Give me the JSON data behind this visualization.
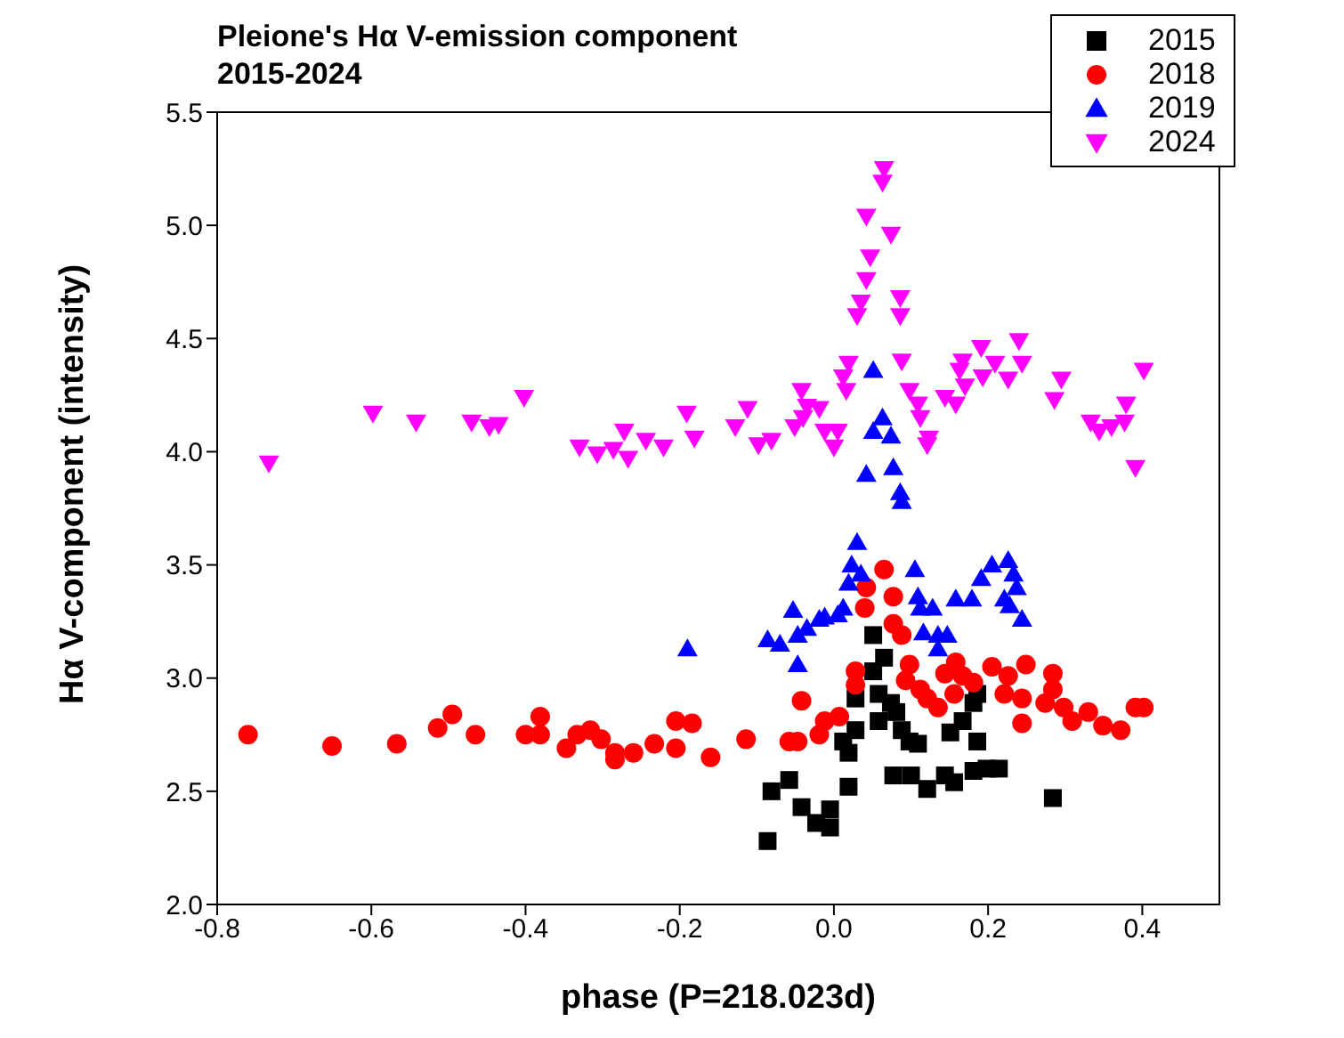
{
  "chart_data": {
    "type": "scatter",
    "title": "Pleione's Hα V-emission component",
    "subtitle": "2015-2024",
    "xlabel": "phase (P=218.023d)",
    "ylabel": "Hα V-component (intensity)",
    "xlim": [
      -0.8,
      0.5
    ],
    "xticks": [
      {
        "value": -0.8,
        "label": "-0.8"
      },
      {
        "value": -0.6,
        "label": "-0.6"
      },
      {
        "value": -0.4,
        "label": "-0.4"
      },
      {
        "value": -0.2,
        "label": "-0.2"
      },
      {
        "value": 0,
        "label": "0.0"
      },
      {
        "value": 0.2,
        "label": "0.2"
      },
      {
        "value": 0.4,
        "label": "0.4"
      }
    ],
    "ylim": [
      2,
      5.5
    ],
    "yticks": [
      {
        "value": 2,
        "label": "2.0"
      },
      {
        "value": 2.5,
        "label": "2.5"
      },
      {
        "value": 3,
        "label": "3.0"
      },
      {
        "value": 3.5,
        "label": "3.5"
      },
      {
        "value": 4,
        "label": "4.0"
      },
      {
        "value": 4.5,
        "label": "4.5"
      },
      {
        "value": 5,
        "label": "5.0"
      },
      {
        "value": 5.5,
        "label": "5.5"
      }
    ],
    "grid": false,
    "legend": "top right",
    "series": [
      {
        "name": "2015",
        "color": "#000000",
        "marker": "square",
        "x": [
          -0.086,
          -0.081,
          -0.058,
          -0.042,
          -0.023,
          -0.005,
          -0.005,
          0.019,
          0.019,
          0.012,
          0.028,
          0.028,
          0.051,
          0.051,
          0.065,
          0.058,
          0.058,
          0.074,
          0.081,
          0.088,
          0.098,
          0.109,
          0.077,
          0.1,
          0.121,
          0.144,
          0.156,
          0.151,
          0.167,
          0.181,
          0.186,
          0.186,
          0.181,
          0.198,
          0.214,
          0.284
        ],
        "values": [
          2.28,
          2.5,
          2.55,
          2.43,
          2.36,
          2.34,
          2.42,
          2.52,
          2.67,
          2.72,
          2.77,
          2.91,
          3.19,
          3.03,
          3.09,
          2.93,
          2.81,
          2.89,
          2.85,
          2.77,
          2.72,
          2.71,
          2.57,
          2.57,
          2.51,
          2.57,
          2.54,
          2.76,
          2.81,
          2.89,
          2.93,
          2.72,
          2.59,
          2.6,
          2.6,
          2.47
        ]
      },
      {
        "name": "2018",
        "color": "#ff0000",
        "marker": "circle",
        "x": [
          -0.76,
          -0.651,
          -0.567,
          -0.514,
          -0.495,
          -0.465,
          -0.4,
          -0.381,
          -0.381,
          -0.347,
          -0.333,
          -0.316,
          -0.302,
          -0.284,
          -0.284,
          -0.26,
          -0.233,
          -0.205,
          -0.184,
          -0.205,
          -0.16,
          -0.114,
          -0.058,
          -0.047,
          -0.019,
          -0.012,
          0.007,
          -0.042,
          0.028,
          0.028,
          0.04,
          0.042,
          0.065,
          0.077,
          0.077,
          0.088,
          0.098,
          0.093,
          0.112,
          0.121,
          0.135,
          0.144,
          0.158,
          0.167,
          0.156,
          0.181,
          0.205,
          0.226,
          0.221,
          0.249,
          0.244,
          0.244,
          0.284,
          0.284,
          0.274,
          0.298,
          0.309,
          0.33,
          0.349,
          0.372,
          0.391,
          0.402
        ],
        "values": [
          2.75,
          2.7,
          2.71,
          2.78,
          2.84,
          2.75,
          2.75,
          2.83,
          2.75,
          2.69,
          2.75,
          2.77,
          2.73,
          2.67,
          2.64,
          2.67,
          2.71,
          2.81,
          2.8,
          2.69,
          2.65,
          2.73,
          2.72,
          2.72,
          2.75,
          2.81,
          2.83,
          2.9,
          3.03,
          2.97,
          3.31,
          3.4,
          3.48,
          3.36,
          3.24,
          3.19,
          3.06,
          2.99,
          2.95,
          2.91,
          2.87,
          3.02,
          3.07,
          3.01,
          2.93,
          2.98,
          3.05,
          3.01,
          2.93,
          3.06,
          2.91,
          2.8,
          3.02,
          2.95,
          2.89,
          2.87,
          2.81,
          2.85,
          2.79,
          2.77,
          2.87,
          2.87
        ]
      },
      {
        "name": "2019",
        "color": "#0000ff",
        "marker": "triangle",
        "x": [
          -0.19,
          -0.086,
          -0.07,
          -0.053,
          -0.047,
          -0.047,
          -0.035,
          -0.019,
          -0.012,
          0.005,
          0.012,
          0.019,
          0.023,
          0.03,
          0.035,
          0.105,
          0.109,
          0.112,
          0.128,
          0.116,
          0.135,
          0.147,
          0.135,
          0.158,
          0.179,
          0.191,
          0.205,
          0.226,
          0.233,
          0.237,
          0.221,
          0.228,
          0.244,
          0.088,
          0.051,
          0.063,
          0.051,
          0.074,
          0.042,
          0.077,
          0.086
        ],
        "values": [
          3.13,
          3.17,
          3.15,
          3.3,
          3.19,
          3.06,
          3.22,
          3.26,
          3.27,
          3.28,
          3.31,
          3.42,
          3.5,
          3.6,
          3.46,
          3.48,
          3.36,
          3.31,
          3.31,
          3.2,
          3.19,
          3.19,
          3.13,
          3.35,
          3.35,
          3.44,
          3.5,
          3.52,
          3.46,
          3.4,
          3.35,
          3.32,
          3.26,
          3.78,
          4.36,
          4.15,
          4.09,
          4.07,
          3.9,
          3.93,
          3.82
        ]
      },
      {
        "name": "2024",
        "color": "#ff00ff",
        "marker": "triangle-down",
        "x": [
          -0.733,
          -0.598,
          -0.542,
          -0.47,
          -0.447,
          -0.435,
          -0.402,
          -0.33,
          -0.307,
          -0.286,
          -0.272,
          -0.267,
          -0.244,
          -0.221,
          -0.191,
          -0.181,
          -0.112,
          -0.128,
          -0.098,
          -0.081,
          -0.042,
          -0.035,
          -0.019,
          -0.051,
          -0.04,
          -0.012,
          0.005,
          0.0,
          0.019,
          0.012,
          0.016,
          0.03,
          0.035,
          0.042,
          0.047,
          0.074,
          0.042,
          0.063,
          0.065,
          0.086,
          0.086,
          0.088,
          0.098,
          0.109,
          0.112,
          0.123,
          0.121,
          0.144,
          0.158,
          0.167,
          0.163,
          0.17,
          0.191,
          0.193,
          0.209,
          0.226,
          0.24,
          0.244,
          0.295,
          0.286,
          0.333,
          0.344,
          0.36,
          0.377,
          0.379,
          0.402,
          0.391
        ],
        "values": [
          3.95,
          4.17,
          4.13,
          4.13,
          4.11,
          4.12,
          4.24,
          4.02,
          3.99,
          4.01,
          4.09,
          3.97,
          4.05,
          4.02,
          4.17,
          4.06,
          4.19,
          4.11,
          4.03,
          4.05,
          4.27,
          4.2,
          4.19,
          4.11,
          4.15,
          4.09,
          4.09,
          4.02,
          4.39,
          4.33,
          4.27,
          4.6,
          4.66,
          4.76,
          4.86,
          4.96,
          5.04,
          5.19,
          5.25,
          4.68,
          4.6,
          4.4,
          4.27,
          4.21,
          4.15,
          4.06,
          4.03,
          4.24,
          4.21,
          4.4,
          4.36,
          4.29,
          4.46,
          4.33,
          4.39,
          4.32,
          4.49,
          4.39,
          4.32,
          4.23,
          4.13,
          4.09,
          4.11,
          4.13,
          4.21,
          4.36,
          3.93
        ]
      }
    ]
  }
}
